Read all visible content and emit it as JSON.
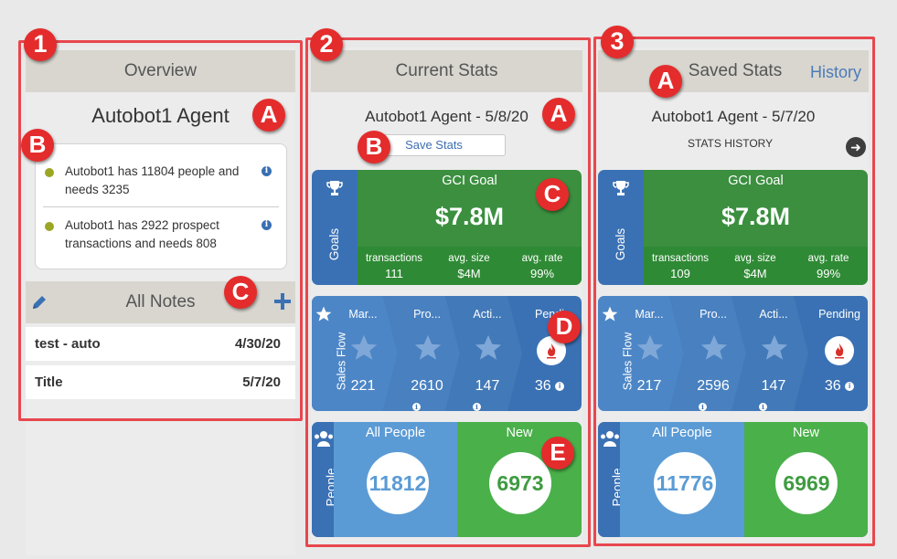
{
  "markers": {
    "col1": "1",
    "col2": "2",
    "col3": "3",
    "letter_a": "A",
    "letter_b": "B",
    "letter_c": "C",
    "letter_d": "D",
    "letter_e": "E"
  },
  "overview": {
    "header": "Overview",
    "agent_name": "Autobot1 Agent",
    "info_items": [
      {
        "text": "Autobot1 has 11804 people and needs 3235",
        "info_icon": "i"
      },
      {
        "text": "Autobot1 has 2922 prospect transactions and needs 808",
        "info_icon": "i"
      }
    ],
    "notes_header": "All Notes",
    "notes": [
      {
        "title": "test - auto",
        "date": "4/30/20"
      },
      {
        "title": "Title",
        "date": "5/7/20"
      }
    ]
  },
  "current": {
    "header": "Current Stats",
    "agent_title": "Autobot1 Agent - 5/8/20",
    "save_button": "Save Stats",
    "goals": {
      "side_label": "Goals",
      "title": "GCI Goal",
      "value": "$7.8M",
      "stats": [
        {
          "label": "transactions",
          "value": "111"
        },
        {
          "label": "avg. size",
          "value": "$4M"
        },
        {
          "label": "avg. rate",
          "value": "99%"
        }
      ]
    },
    "flow": {
      "side_label": "Sales Flow",
      "stages": [
        {
          "label": "Mar...",
          "value": "221"
        },
        {
          "label": "Pro...",
          "value": "2610"
        },
        {
          "label": "Acti...",
          "value": "147"
        },
        {
          "label": "Pendi",
          "value": "36"
        }
      ]
    },
    "people": {
      "side_label": "People",
      "all_title": "All People",
      "all_value": "11812",
      "new_title": "New",
      "new_value": "6973"
    }
  },
  "saved": {
    "header": "Saved Stats",
    "history_link": "History",
    "agent_title": "Autobot1 Agent - 5/7/20",
    "history_label": "STATS HISTORY",
    "goals": {
      "side_label": "Goals",
      "title": "GCI Goal",
      "value": "$7.8M",
      "stats": [
        {
          "label": "transactions",
          "value": "109"
        },
        {
          "label": "avg. size",
          "value": "$4M"
        },
        {
          "label": "avg. rate",
          "value": "99%"
        }
      ]
    },
    "flow": {
      "side_label": "Sales Flow",
      "stages": [
        {
          "label": "Mar...",
          "value": "217"
        },
        {
          "label": "Pro...",
          "value": "2596"
        },
        {
          "label": "Acti...",
          "value": "147"
        },
        {
          "label": "Pending",
          "value": "36"
        }
      ]
    },
    "people": {
      "side_label": "People",
      "all_title": "All People",
      "all_value": "11776",
      "new_title": "New",
      "new_value": "6969"
    }
  },
  "colors": {
    "annotation_red": "#e42c2c",
    "blue": "#3a71b4",
    "green": "#3b8f3f",
    "bright_green": "#4ab04a",
    "light_blue": "#5b9bd5"
  }
}
